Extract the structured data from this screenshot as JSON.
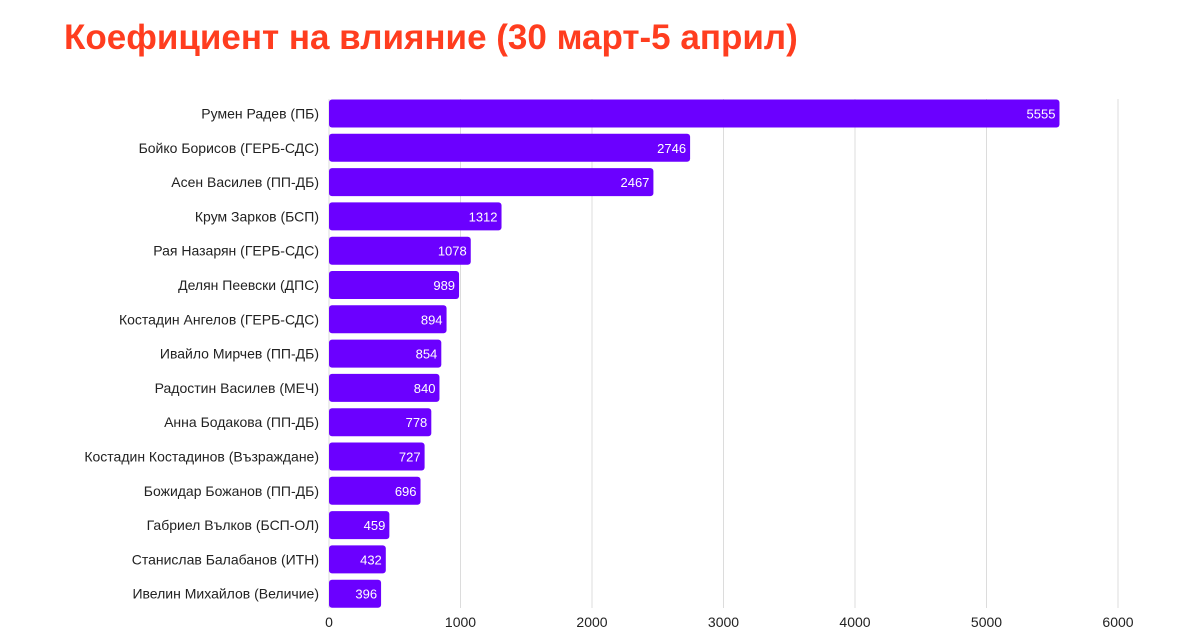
{
  "chart_data": {
    "type": "bar",
    "orientation": "horizontal",
    "title": "Коефициент на влияние (30 март-5 април)",
    "categories": [
      "Румен Радев (ПБ)",
      "Бойко Борисов (ГЕРБ-СДС)",
      "Асен Василев (ПП-ДБ)",
      "Крум Зарков (БСП)",
      "Рая Назарян (ГЕРБ-СДС)",
      "Делян Пеевски (ДПС)",
      "Костадин Ангелов (ГЕРБ-СДС)",
      "Ивайло Мирчев (ПП-ДБ)",
      "Радостин Василев (МЕЧ)",
      "Анна Бодакова (ПП-ДБ)",
      "Костадин Костадинов (Възраждане)",
      "Божидар Божанов (ПП-ДБ)",
      "Габриел Вълков (БСП-ОЛ)",
      "Станислав Балабанов (ИТН)",
      "Ивелин Михайлов (Величие)"
    ],
    "values": [
      5555,
      2746,
      2467,
      1312,
      1078,
      989,
      894,
      854,
      840,
      778,
      727,
      696,
      459,
      432,
      396
    ],
    "xlim": [
      0,
      6000
    ],
    "xticks": [
      0,
      1000,
      2000,
      3000,
      4000,
      5000,
      6000
    ],
    "xlabel": "",
    "ylabel": "",
    "grid": true,
    "data_labels": true,
    "colors": {
      "bar": "#6b00ff",
      "title": "#ff3d1f",
      "grid": "#dcdcdc",
      "text": "#222222",
      "value_text": "#ffffff"
    }
  }
}
